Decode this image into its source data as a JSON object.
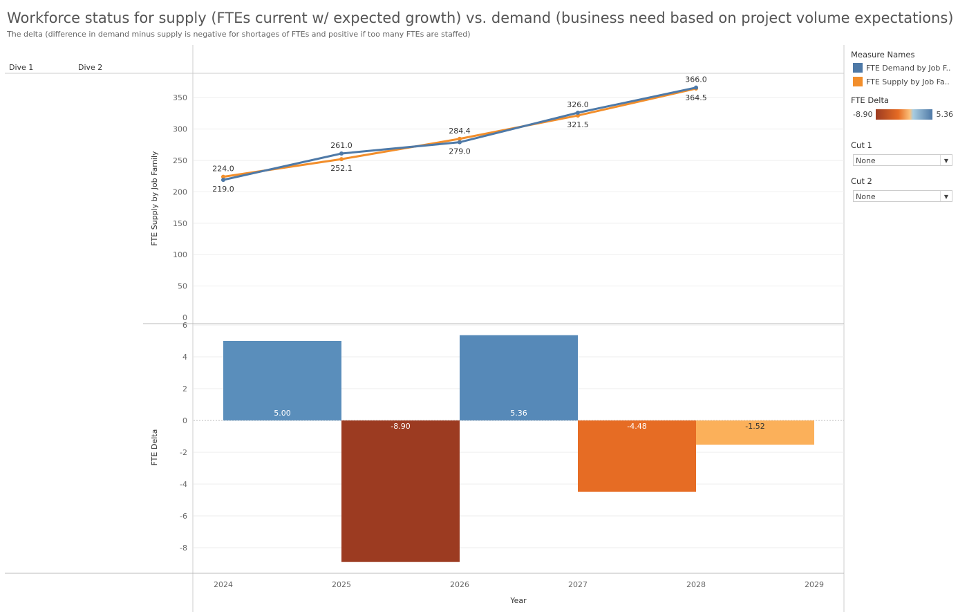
{
  "title": "Workforce status for supply (FTEs current w/ expected growth) vs. demand (business need based on project volume expectations)",
  "subtitle": "The delta (difference in demand minus supply is negative for shortages of FTEs and positive if too many FTEs are staffed)",
  "dives": [
    "Dive 1",
    "Dive 2"
  ],
  "sidebar": {
    "measure_names_title": "Measure Names",
    "legend": [
      {
        "label": "FTE Demand by Job F..",
        "color": "#4e79a7"
      },
      {
        "label": "FTE Supply by Job Fa..",
        "color": "#f28e2b"
      }
    ],
    "delta_title": "FTE Delta",
    "delta_min": "-8.90",
    "delta_max": "5.36",
    "cut1_label": "Cut 1",
    "cut1_value": "None",
    "cut2_label": "Cut 2",
    "cut2_value": "None"
  },
  "chart_data": [
    {
      "type": "line",
      "ylabel": "FTE Supply by Job Family",
      "xlabel": "Year",
      "ylim": [
        0,
        370
      ],
      "yticks": [
        0,
        50,
        100,
        150,
        200,
        250,
        300,
        350
      ],
      "x": [
        "2024",
        "2025",
        "2026",
        "2027",
        "2028"
      ],
      "series": [
        {
          "name": "FTE Demand by Job Family",
          "color": "#4e79a7",
          "values": [
            219.0,
            261.0,
            279.0,
            326.0,
            366.0
          ],
          "labels": [
            "219.0",
            "261.0",
            "279.0",
            "326.0",
            "366.0"
          ]
        },
        {
          "name": "FTE Supply by Job Family",
          "color": "#f28e2b",
          "values": [
            224.0,
            252.1,
            284.4,
            321.5,
            364.5
          ],
          "labels": [
            "224.0",
            "252.1",
            "284.4",
            "321.5",
            "364.5"
          ]
        }
      ]
    },
    {
      "type": "bar",
      "ylabel": "FTE Delta",
      "xlabel": "Year",
      "ylim": [
        -9,
        6.5
      ],
      "yticks": [
        -8,
        -6,
        -4,
        -2,
        0,
        2,
        4,
        6
      ],
      "x_ticks": [
        "2024",
        "2025",
        "2026",
        "2027",
        "2028",
        "2029"
      ],
      "categories": [
        "2024",
        "2025",
        "2026",
        "2027",
        "2028"
      ],
      "values": [
        5.0,
        -8.9,
        5.36,
        -4.48,
        -1.52
      ],
      "labels": [
        "5.00",
        "-8.90",
        "5.36",
        "-4.48",
        "-1.52"
      ],
      "colors": [
        "#5a8ebb",
        "#9c3b21",
        "#5689b8",
        "#e66c24",
        "#fbb05a"
      ]
    }
  ]
}
